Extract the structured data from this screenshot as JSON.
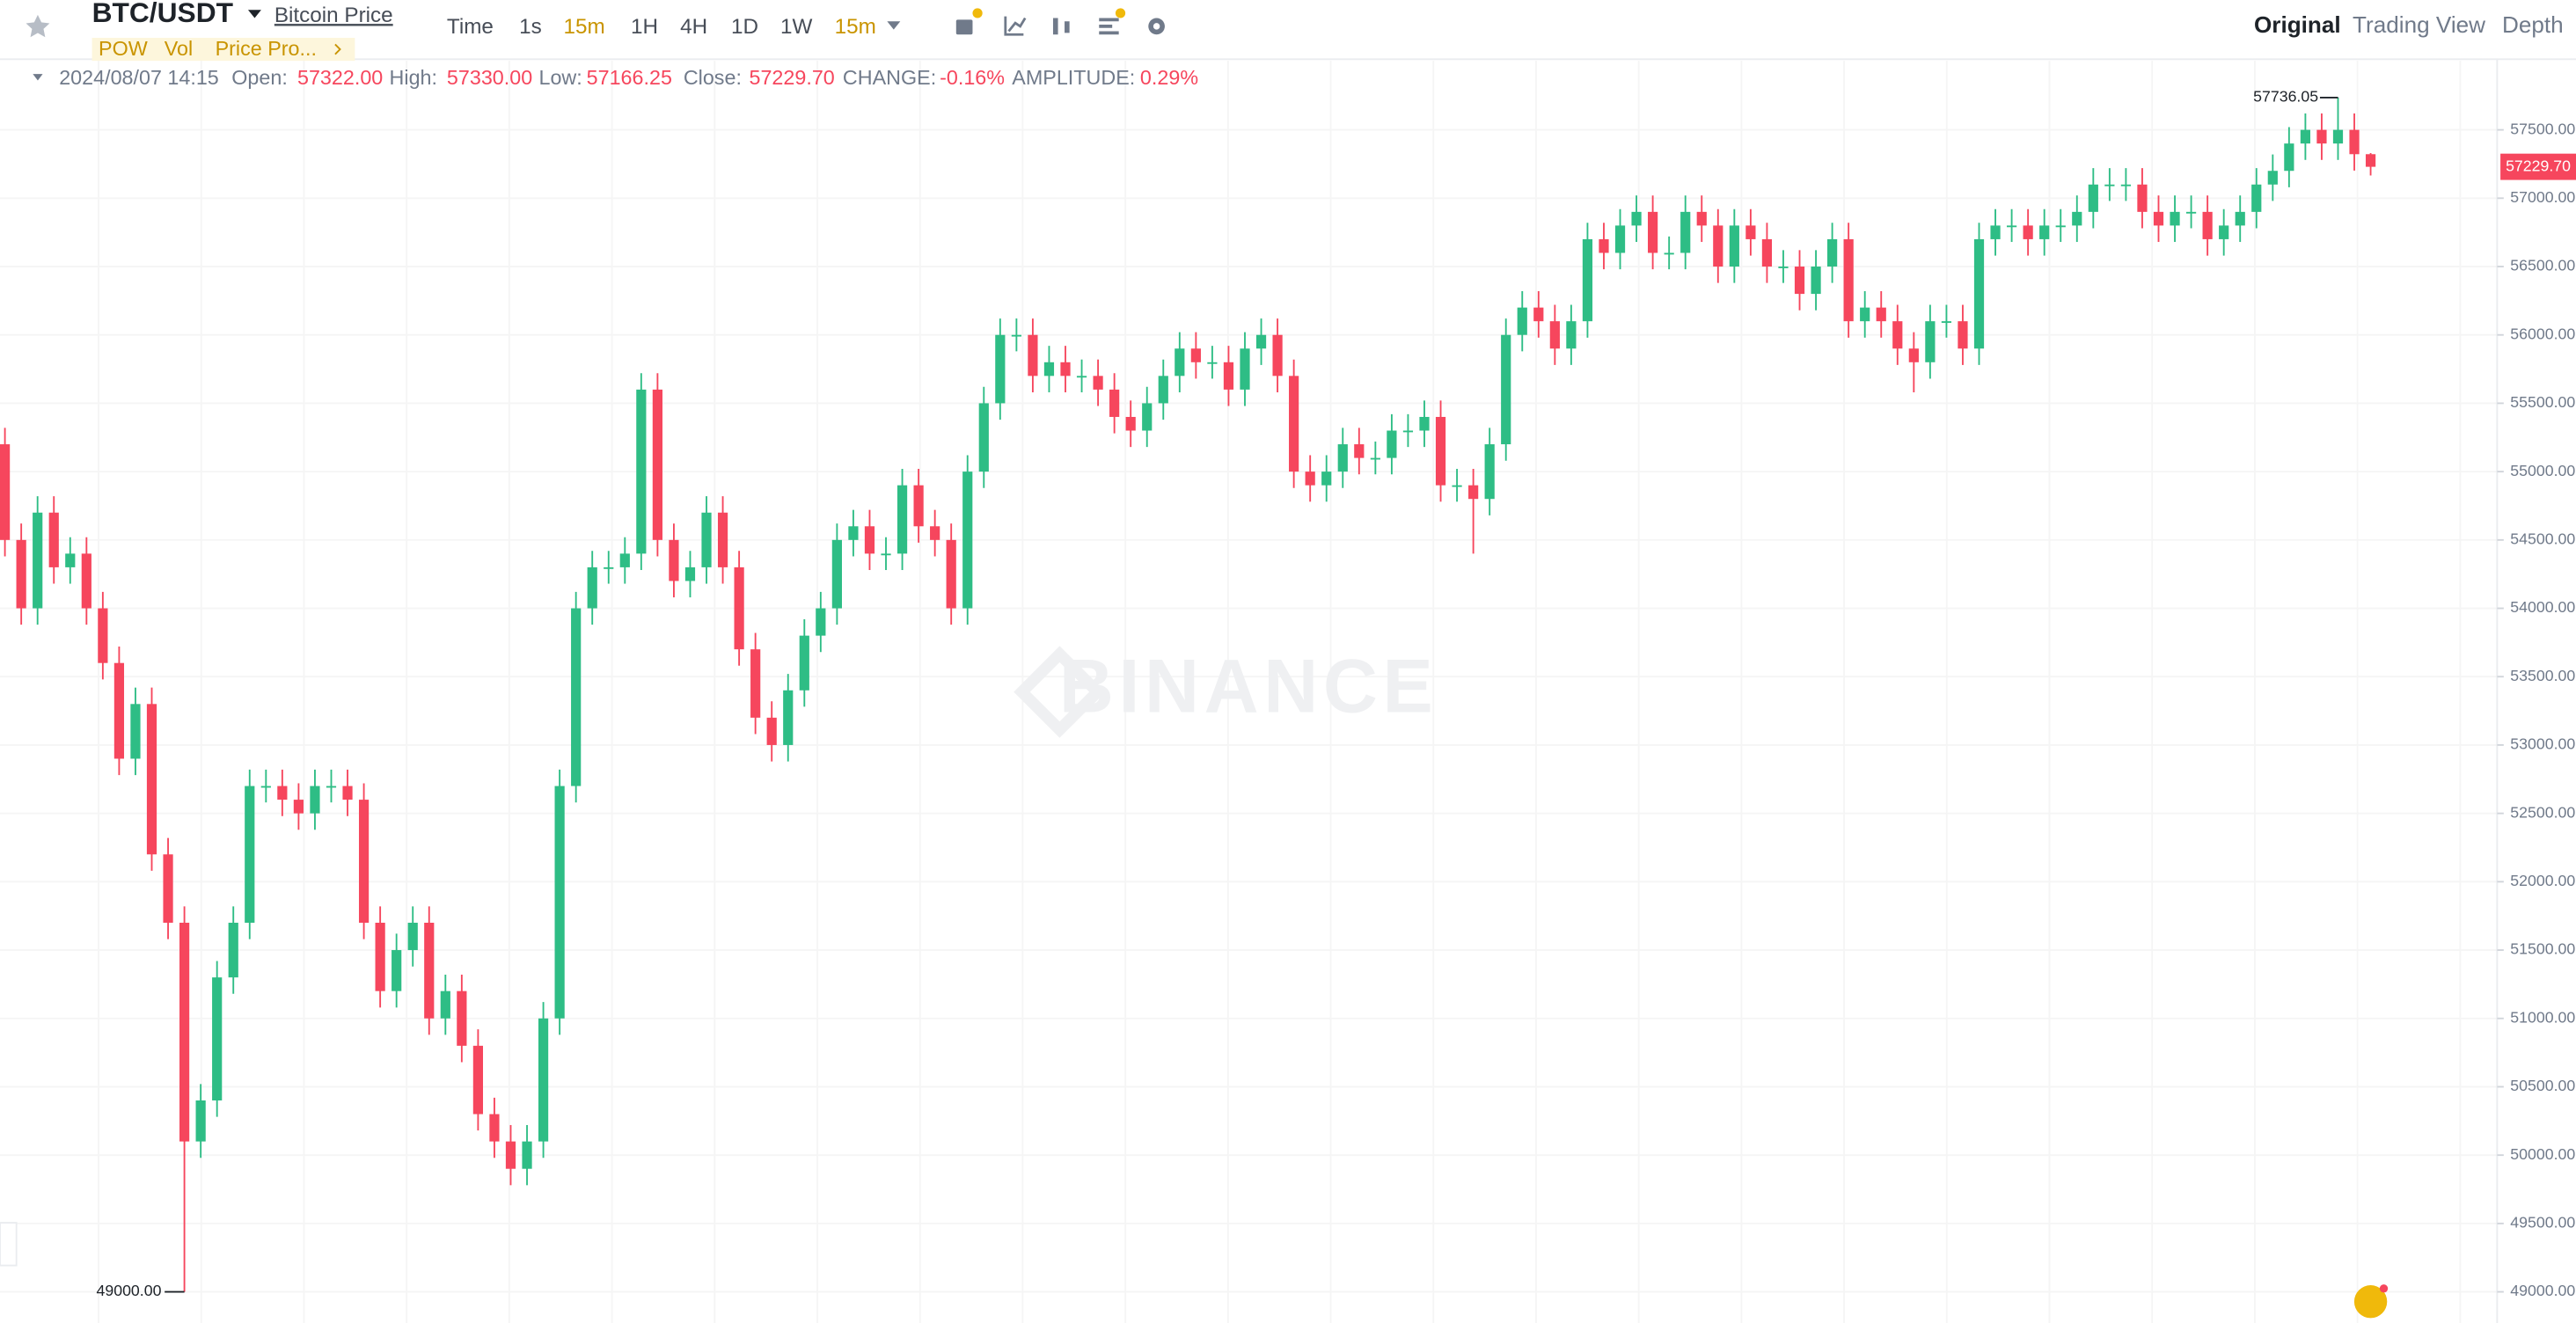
{
  "header": {
    "symbol": "BTC/USDT",
    "link": "Bitcoin Price",
    "tags": [
      "POW",
      "Vol",
      "Price Pro..."
    ]
  },
  "toolbar": {
    "intervals": [
      "Time",
      "1s",
      "15m",
      "1H",
      "4H",
      "1D",
      "1W"
    ],
    "selected": "15m"
  },
  "views": [
    "Original",
    "Trading View",
    "Depth"
  ],
  "info": {
    "time": "2024/08/07 14:15",
    "open_label": "Open:",
    "open": "57322.00",
    "high_label": "High:",
    "high": "57330.00",
    "low_label": "Low:",
    "low": "57166.25",
    "close_label": "Close:",
    "close": "57229.70",
    "change_label": "CHANGE:",
    "change": "-0.16%",
    "amplitude_label": "AMPLITUDE:",
    "amplitude": "0.29%"
  },
  "watermark": "BINANCE",
  "chart_data": {
    "type": "candlestick",
    "up_color": "#2ebd85",
    "down_color": "#f6465d",
    "grid": true,
    "ylim": [
      48772,
      58005
    ],
    "yticks": [
      {
        "value": 49000,
        "label": "49000.00"
      },
      {
        "value": 49500,
        "label": "49500.00"
      },
      {
        "value": 50000,
        "label": "50000.00"
      },
      {
        "value": 50500,
        "label": "50500.00"
      },
      {
        "value": 51000,
        "label": "51000.00"
      },
      {
        "value": 51500,
        "label": "51500.00"
      },
      {
        "value": 52000,
        "label": "52000.00"
      },
      {
        "value": 52500,
        "label": "52500.00"
      },
      {
        "value": 53000,
        "label": "53000.00"
      },
      {
        "value": 53500,
        "label": "53500.00"
      },
      {
        "value": 54000,
        "label": "54000.00"
      },
      {
        "value": 54500,
        "label": "54500.00"
      },
      {
        "value": 55000,
        "label": "55000.00"
      },
      {
        "value": 55500,
        "label": "55500.00"
      },
      {
        "value": 56000,
        "label": "56000.00"
      },
      {
        "value": 56500,
        "label": "56500.00"
      },
      {
        "value": 57000,
        "label": "57000.00"
      },
      {
        "value": 57500,
        "label": "57500.00"
      }
    ],
    "max_label": "57736.05",
    "min_label": "49000.00",
    "last_label": "57229.70",
    "opens": [
      55200,
      54500,
      54000,
      54700,
      54300,
      54400,
      54000,
      53600,
      52900,
      53300,
      52200,
      51700,
      50100,
      50400,
      51300,
      51700,
      52700,
      52700,
      52600,
      52500,
      52700,
      52700,
      52600,
      51700,
      51200,
      51500,
      51700,
      51000,
      51200,
      50800,
      50300,
      50100,
      49900,
      50100,
      51000,
      52700,
      54000,
      54300,
      54300,
      54400,
      55600,
      54500,
      54200,
      54300,
      54700,
      54300,
      53700,
      53200,
      53000,
      53400,
      53800,
      54000,
      54500,
      54600,
      54400,
      54400,
      54900,
      54600,
      54500,
      54000,
      55000,
      55500,
      56000,
      56000,
      55700,
      55800,
      55700,
      55700,
      55600,
      55400,
      55300,
      55500,
      55700,
      55900,
      55800,
      55800,
      55600,
      55900,
      56000,
      55700,
      55000,
      54900,
      55000,
      55200,
      55100,
      55100,
      55300,
      55300,
      55400,
      54900,
      54900,
      54800,
      55200,
      56000,
      56200,
      56100,
      55900,
      56100,
      56700,
      56600,
      56800,
      56900,
      56600,
      56600,
      56900,
      56800,
      56500,
      56800,
      56700,
      56500,
      56500,
      56300,
      56500,
      56700,
      56100,
      56200,
      56100,
      55900,
      55800,
      56100,
      56100,
      55900,
      56700,
      56800,
      56800,
      56700,
      56800,
      56800,
      56900,
      57100,
      57100,
      57100,
      56900,
      56800,
      56900,
      56900,
      56700,
      56800,
      56900,
      57100,
      57200,
      57400,
      57500,
      57400,
      57500,
      57322
    ],
    "closes": [
      54500,
      54000,
      54700,
      54300,
      54400,
      54000,
      53600,
      52900,
      53300,
      52200,
      51700,
      50100,
      50400,
      51300,
      51700,
      52700,
      52700,
      52600,
      52500,
      52700,
      52700,
      52600,
      51700,
      51200,
      51500,
      51700,
      51000,
      51200,
      50800,
      50300,
      50100,
      49900,
      50100,
      51000,
      52700,
      54000,
      54300,
      54300,
      54400,
      55600,
      54500,
      54200,
      54300,
      54700,
      54300,
      53700,
      53200,
      53000,
      53400,
      53800,
      54000,
      54500,
      54600,
      54400,
      54400,
      54900,
      54600,
      54500,
      54000,
      55000,
      55500,
      56000,
      56000,
      55700,
      55800,
      55700,
      55700,
      55600,
      55400,
      55300,
      55500,
      55700,
      55900,
      55800,
      55800,
      55600,
      55900,
      56000,
      55700,
      55000,
      54900,
      55000,
      55200,
      55100,
      55100,
      55300,
      55300,
      55400,
      54900,
      54900,
      54800,
      55200,
      56000,
      56200,
      56100,
      55900,
      56100,
      56700,
      56600,
      56800,
      56900,
      56600,
      56600,
      56900,
      56800,
      56500,
      56800,
      56700,
      56500,
      56500,
      56300,
      56500,
      56700,
      56100,
      56200,
      56100,
      55900,
      55800,
      56100,
      56100,
      55900,
      56700,
      56800,
      56800,
      56700,
      56800,
      56800,
      56900,
      57100,
      57100,
      57100,
      56900,
      56800,
      56900,
      56900,
      56700,
      56800,
      56900,
      57100,
      57200,
      57400,
      57500,
      57400,
      57500,
      57322,
      57229.7
    ],
    "highs": [
      55320,
      54620,
      54820,
      54820,
      54520,
      54520,
      54120,
      53720,
      53420,
      53420,
      52320,
      51820,
      50520,
      51420,
      51820,
      52820,
      52820,
      52820,
      52720,
      52820,
      52820,
      52820,
      52720,
      51820,
      51620,
      51820,
      51820,
      51320,
      51320,
      50920,
      50420,
      50220,
      50220,
      51120,
      52820,
      54120,
      54420,
      54420,
      54520,
      55720,
      55720,
      54620,
      54420,
      54820,
      54820,
      54420,
      53820,
      53320,
      53520,
      53920,
      54120,
      54620,
      54720,
      54720,
      54520,
      55020,
      55020,
      54720,
      54620,
      55120,
      55620,
      56120,
      56120,
      56120,
      55920,
      55920,
      55820,
      55820,
      55720,
      55520,
      55620,
      55820,
      56020,
      56020,
      55920,
      55920,
      56020,
      56120,
      56120,
      55820,
      55120,
      55120,
      55320,
      55320,
      55220,
      55420,
      55420,
      55520,
      55520,
      55020,
      55020,
      55320,
      56120,
      56320,
      56320,
      56220,
      56220,
      56820,
      56820,
      56920,
      57020,
      57020,
      56720,
      57020,
      57020,
      56920,
      56920,
      56920,
      56820,
      56620,
      56620,
      56620,
      56820,
      56820,
      56320,
      56320,
      56220,
      56020,
      56220,
      56220,
      56220,
      56820,
      56920,
      56920,
      56920,
      56920,
      56920,
      57020,
      57220,
      57220,
      57220,
      57220,
      57020,
      57020,
      57020,
      57020,
      56920,
      57020,
      57220,
      57320,
      57520,
      57620,
      57620,
      57736.05,
      57620,
      57330
    ],
    "lows": [
      54380,
      53880,
      53880,
      54180,
      54180,
      53880,
      53480,
      52780,
      52780,
      52080,
      51580,
      49000,
      49980,
      50280,
      51180,
      51580,
      52580,
      52480,
      52380,
      52380,
      52580,
      52480,
      51580,
      51080,
      51080,
      51380,
      50880,
      50880,
      50680,
      50180,
      49980,
      49780,
      49780,
      49980,
      50880,
      52580,
      53880,
      54180,
      54180,
      54280,
      54380,
      54080,
      54080,
      54180,
      54180,
      53580,
      53080,
      52880,
      52880,
      53280,
      53680,
      53880,
      54380,
      54280,
      54280,
      54280,
      54480,
      54380,
      53880,
      53880,
      54880,
      55380,
      55880,
      55580,
      55580,
      55580,
      55580,
      55480,
      55280,
      55180,
      55180,
      55380,
      55580,
      55680,
      55680,
      55480,
      55480,
      55780,
      55580,
      54880,
      54780,
      54780,
      54880,
      54980,
      54980,
      54980,
      55180,
      55180,
      54780,
      54780,
      54400,
      54680,
      55080,
      55880,
      55980,
      55780,
      55780,
      55980,
      56480,
      56480,
      56680,
      56480,
      56480,
      56480,
      56680,
      56380,
      56380,
      56580,
      56380,
      56380,
      56180,
      56180,
      56380,
      55980,
      55980,
      55980,
      55780,
      55580,
      55680,
      55980,
      55780,
      55780,
      56580,
      56680,
      56580,
      56580,
      56680,
      56680,
      56780,
      56980,
      56980,
      56780,
      56680,
      56680,
      56780,
      56580,
      56580,
      56680,
      56780,
      56980,
      57080,
      57280,
      57280,
      57280,
      57202,
      57166.25
    ]
  }
}
